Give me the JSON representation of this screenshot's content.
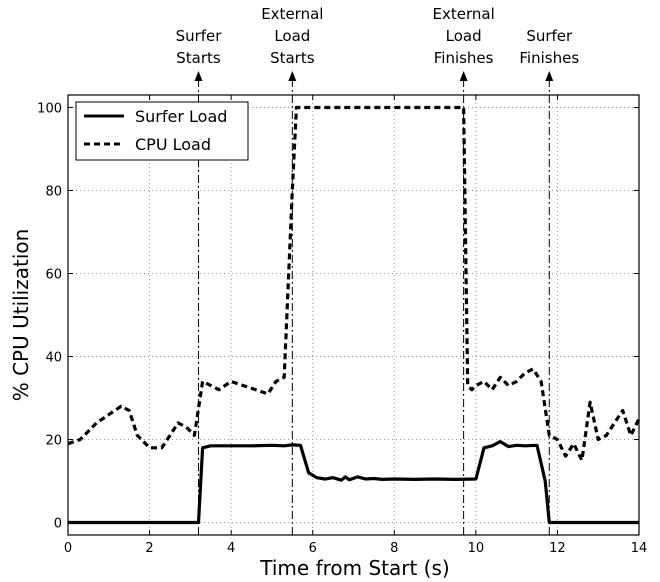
{
  "chart_data": {
    "type": "line",
    "xlabel": "Time from Start (s)",
    "ylabel": "% CPU Utilization",
    "xlim": [
      0,
      14
    ],
    "ylim": [
      -3,
      103
    ],
    "xticks": [
      0,
      2,
      4,
      6,
      8,
      10,
      12,
      14
    ],
    "yticks": [
      0,
      20,
      40,
      60,
      80,
      100
    ],
    "grid": true,
    "legend_position": "top-left",
    "series": [
      {
        "name": "Surfer Load",
        "style": "solid",
        "color": "#000000",
        "x": [
          0,
          3.2,
          3.3,
          3.5,
          4.0,
          4.5,
          5.0,
          5.3,
          5.5,
          5.7,
          5.9,
          6.1,
          6.3,
          6.5,
          6.7,
          6.8,
          6.9,
          7.1,
          7.3,
          7.5,
          7.7,
          8.0,
          8.5,
          9.0,
          9.5,
          10.0,
          10.2,
          10.4,
          10.6,
          10.8,
          11.0,
          11.2,
          11.5,
          11.7,
          11.8,
          12.0,
          14.0
        ],
        "y": [
          0,
          0,
          18,
          18.5,
          18.5,
          18.5,
          18.6,
          18.5,
          18.7,
          18.6,
          12,
          10.8,
          10.5,
          10.8,
          10.2,
          11,
          10.3,
          11,
          10.5,
          10.6,
          10.4,
          10.5,
          10.4,
          10.5,
          10.4,
          10.5,
          18,
          18.5,
          19.5,
          18.3,
          18.6,
          18.5,
          18.6,
          10,
          0,
          0,
          0
        ]
      },
      {
        "name": "CPU Load",
        "style": "dashed",
        "color": "#000000",
        "x": [
          0,
          0.3,
          0.5,
          0.7,
          1.0,
          1.3,
          1.5,
          1.7,
          2.0,
          2.3,
          2.5,
          2.7,
          2.9,
          3.1,
          3.3,
          3.5,
          3.7,
          4.0,
          4.3,
          4.6,
          4.9,
          5.1,
          5.3,
          5.5,
          5.6,
          5.7,
          6.0,
          7.0,
          8.0,
          9.0,
          9.7,
          9.8,
          9.9,
          10.0,
          10.2,
          10.4,
          10.6,
          10.8,
          11.0,
          11.2,
          11.4,
          11.6,
          11.8,
          12.0,
          12.2,
          12.4,
          12.6,
          12.8,
          13.0,
          13.2,
          13.4,
          13.6,
          13.8,
          14.0
        ],
        "y": [
          19,
          20,
          22,
          24,
          26,
          28,
          27,
          21,
          18,
          18,
          21,
          24,
          23,
          21,
          34,
          33,
          32,
          34,
          33,
          32,
          31,
          34,
          35,
          80,
          100,
          100,
          100,
          100,
          100,
          100,
          100,
          33,
          32,
          33,
          34,
          32,
          35,
          33,
          34,
          36,
          37,
          34,
          21,
          20,
          16,
          19,
          15,
          29,
          20,
          21,
          24,
          27,
          21,
          25
        ]
      }
    ],
    "annotations": [
      {
        "x": 3.2,
        "label": [
          "Surfer",
          "Starts"
        ]
      },
      {
        "x": 5.5,
        "label": [
          "External",
          "Load",
          "Starts"
        ]
      },
      {
        "x": 9.7,
        "label": [
          "External",
          "Load",
          "Finishes"
        ]
      },
      {
        "x": 11.8,
        "label": [
          "Surfer",
          "Finishes"
        ]
      }
    ]
  }
}
